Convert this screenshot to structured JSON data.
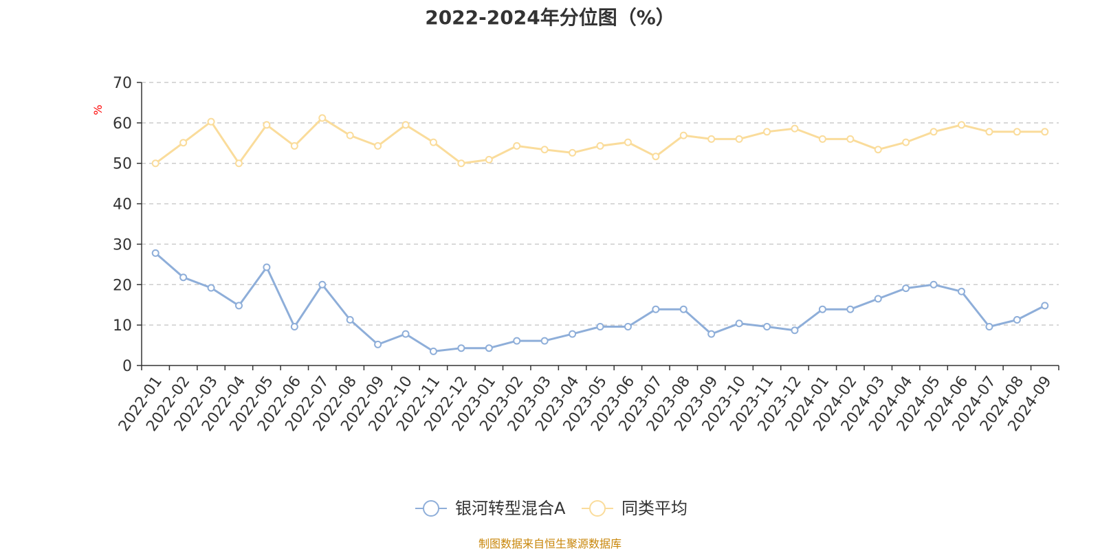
{
  "chart_data": {
    "type": "line",
    "title": "2022-2024年分位图（%）",
    "ylabel": "%",
    "xlabel": "",
    "ylim": [
      0,
      70
    ],
    "yticks": [
      0,
      10,
      20,
      30,
      40,
      50,
      60,
      70
    ],
    "grid": true,
    "legend_position": "bottom",
    "categories": [
      "2022-01",
      "2022-02",
      "2022-03",
      "2022-04",
      "2022-05",
      "2022-06",
      "2022-07",
      "2022-08",
      "2022-09",
      "2022-10",
      "2022-11",
      "2022-12",
      "2023-01",
      "2023-02",
      "2023-03",
      "2023-04",
      "2023-05",
      "2023-06",
      "2023-07",
      "2023-08",
      "2023-09",
      "2023-10",
      "2023-11",
      "2023-12",
      "2024-01",
      "2024-02",
      "2024-03",
      "2024-04",
      "2024-05",
      "2024-06",
      "2024-07",
      "2024-08",
      "2024-09"
    ],
    "series": [
      {
        "name": "银河转型混合A",
        "color": "#8eaed9",
        "values": [
          27.8,
          21.8,
          19.2,
          14.8,
          24.3,
          9.6,
          20.0,
          11.3,
          5.2,
          7.8,
          3.5,
          4.3,
          4.3,
          6.1,
          6.1,
          7.8,
          9.6,
          9.6,
          13.9,
          13.9,
          7.8,
          10.4,
          9.6,
          8.7,
          13.9,
          13.9,
          16.5,
          19.1,
          20.0,
          18.3,
          9.6,
          11.3,
          14.8
        ]
      },
      {
        "name": "同类平均",
        "color": "#fadc9b",
        "values": [
          50.0,
          55.1,
          60.3,
          50.0,
          59.5,
          54.3,
          61.2,
          56.9,
          54.3,
          59.5,
          55.2,
          50.0,
          50.9,
          54.3,
          53.4,
          52.6,
          54.3,
          55.2,
          51.7,
          56.9,
          56.0,
          56.0,
          57.8,
          58.6,
          56.0,
          56.0,
          53.4,
          55.2,
          57.8,
          59.5,
          57.8,
          57.8,
          57.8
        ]
      }
    ]
  },
  "source_note": "制图数据来自恒生聚源数据库"
}
